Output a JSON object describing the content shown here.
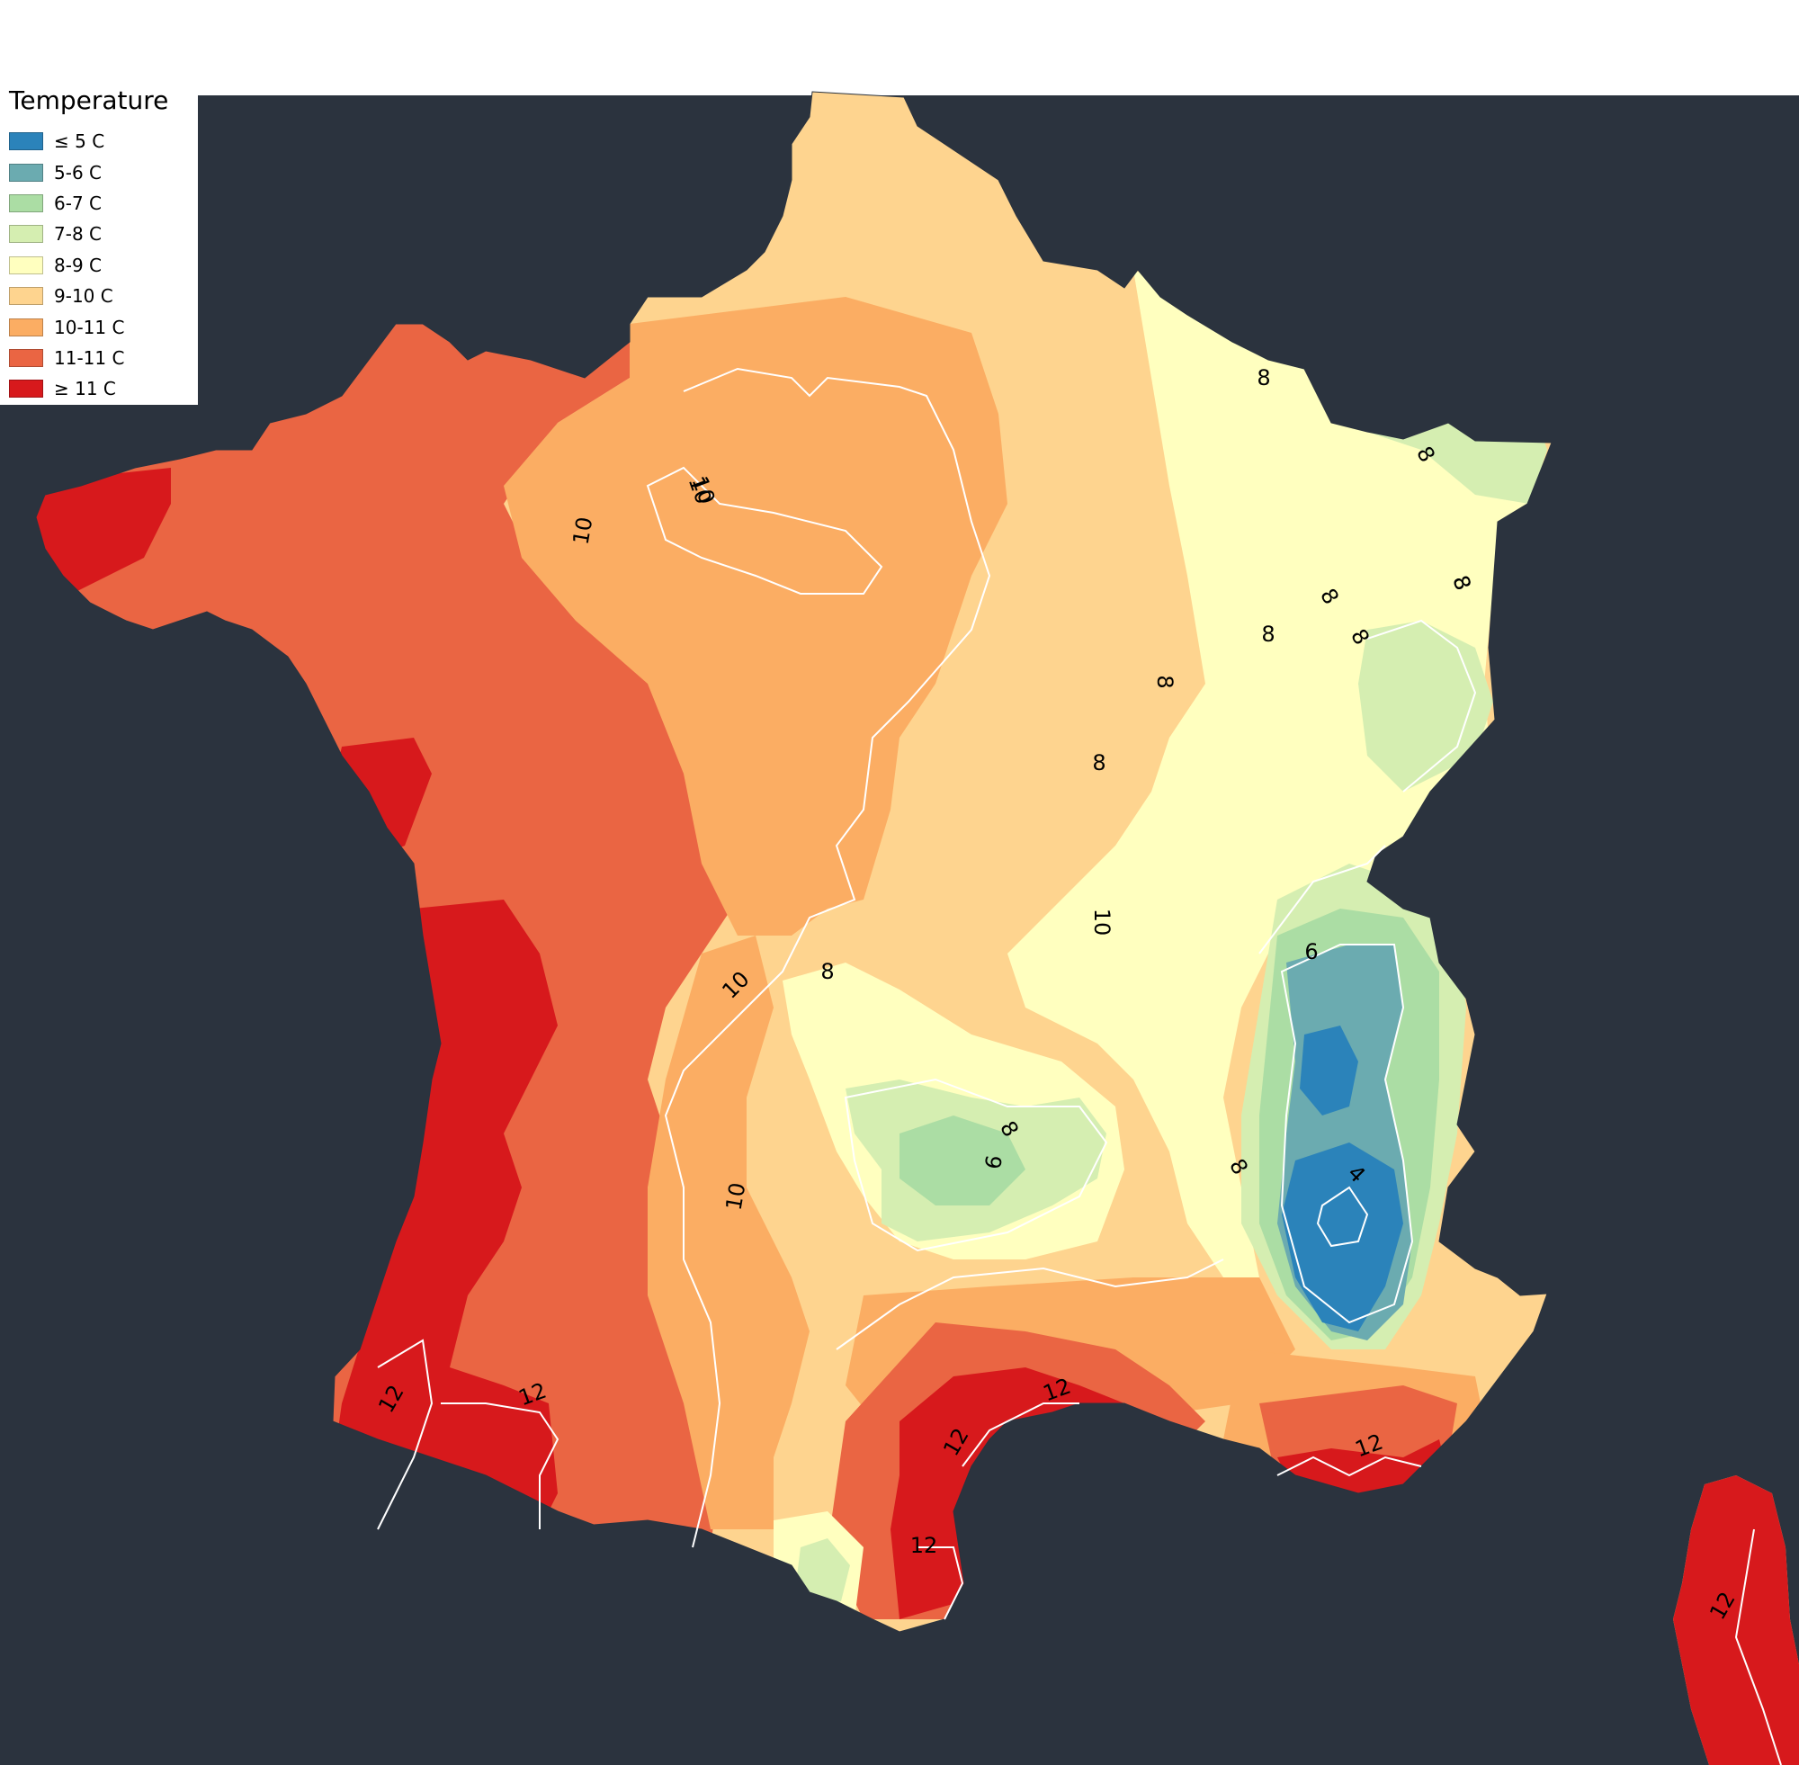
{
  "colors": {
    "ocean": "#2b333e",
    "background": "#ffffff",
    "contour": "#ffffff"
  },
  "legend": {
    "title": "Temperature",
    "items": [
      {
        "label": "≤ 5 C",
        "color": "#2b83ba"
      },
      {
        "label": "5-6 C",
        "color": "#6babb0"
      },
      {
        "label": "6-7 C",
        "color": "#abdda4"
      },
      {
        "label": "7-8 C",
        "color": "#d5eeb1"
      },
      {
        "label": "8-9 C",
        "color": "#ffffbf"
      },
      {
        "label": "9-10 C",
        "color": "#fed48f"
      },
      {
        "label": "10-11 C",
        "color": "#fbad63"
      },
      {
        "label": "11-11 C",
        "color": "#ea6543"
      },
      {
        "label": "≥ 11 C",
        "color": "#d7191c"
      }
    ]
  },
  "contour_labels": [
    "10",
    "10",
    "10",
    "10",
    "10",
    "10",
    "8",
    "8",
    "8",
    "8",
    "8",
    "8",
    "8",
    "8",
    "8",
    "8",
    "8",
    "8",
    "6",
    "6",
    "4",
    "12",
    "12",
    "12",
    "12",
    "12",
    "12",
    "12"
  ]
}
